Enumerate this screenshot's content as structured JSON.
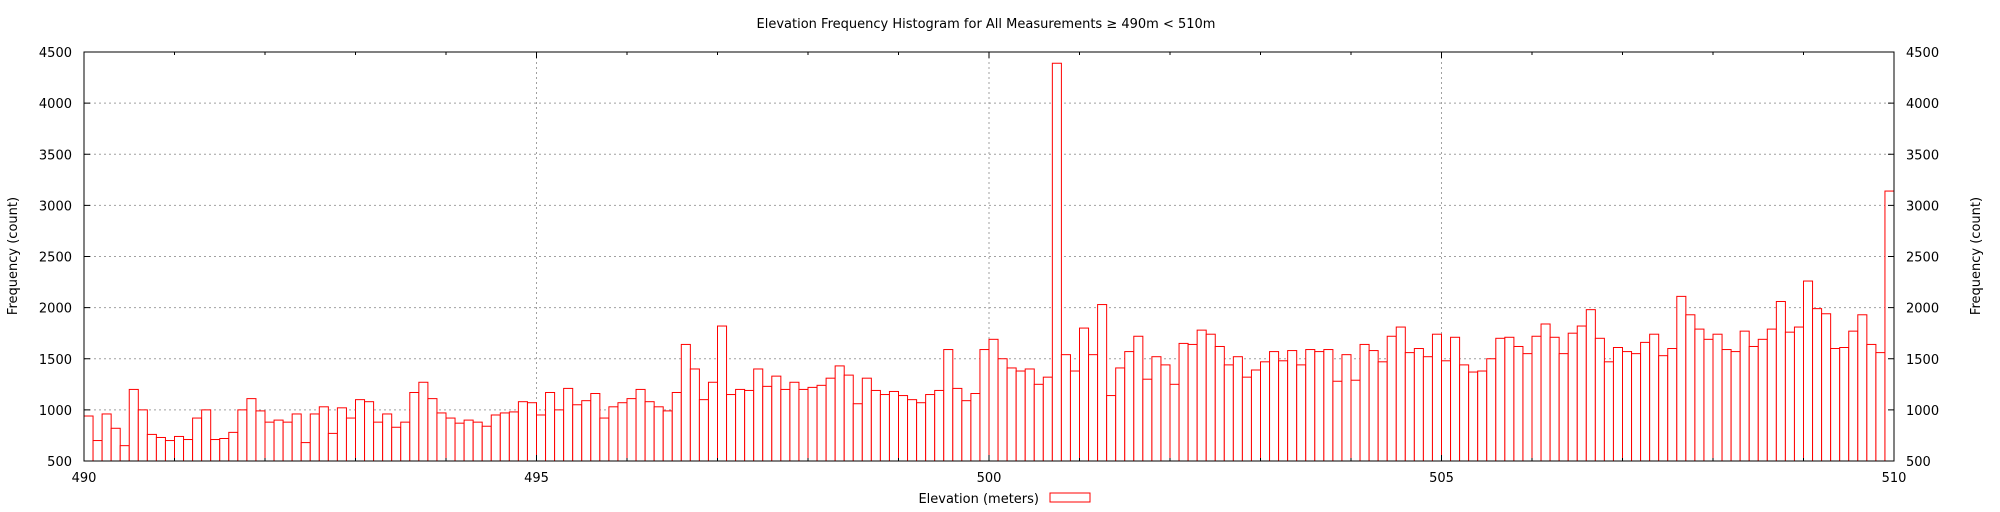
{
  "chart_data": {
    "type": "bar",
    "title": "Elevation Frequency Histogram for All Measurements ≥ 490m < 510m",
    "xlabel": "Elevation (meters)",
    "ylabel": "Frequency (count)",
    "y2label": "Frequency (count)",
    "xlim": [
      490,
      510
    ],
    "ylim": [
      500,
      4500
    ],
    "xticks": [
      "490",
      "495",
      "500",
      "505",
      "510"
    ],
    "yticks": [
      "500",
      "1000",
      "1500",
      "2000",
      "2500",
      "3000",
      "3500",
      "4000",
      "4500"
    ],
    "grid": true,
    "legend_placement": "bottom-center",
    "series_color": "#ff0000",
    "bin_width": 0.1,
    "bin_start": 490,
    "values": [
      940,
      700,
      960,
      820,
      650,
      1200,
      1000,
      760,
      730,
      700,
      740,
      710,
      920,
      1000,
      710,
      720,
      780,
      1000,
      1110,
      990,
      880,
      900,
      880,
      960,
      680,
      960,
      1030,
      770,
      1020,
      920,
      1100,
      1080,
      880,
      960,
      830,
      880,
      1170,
      1270,
      1110,
      970,
      920,
      870,
      900,
      880,
      840,
      950,
      970,
      980,
      1080,
      1070,
      950,
      1170,
      1000,
      1210,
      1050,
      1090,
      1160,
      920,
      1030,
      1070,
      1110,
      1200,
      1080,
      1030,
      990,
      1170,
      1640,
      1400,
      1100,
      1270,
      1820,
      1150,
      1200,
      1190,
      1400,
      1230,
      1330,
      1200,
      1270,
      1200,
      1220,
      1240,
      1310,
      1430,
      1340,
      1060,
      1310,
      1190,
      1150,
      1180,
      1140,
      1100,
      1070,
      1150,
      1190,
      1590,
      1210,
      1090,
      1160,
      1590,
      1690,
      1500,
      1410,
      1380,
      1400,
      1250,
      1320,
      4390,
      1540,
      1380,
      1800,
      1540,
      2030,
      1140,
      1410,
      1570,
      1720,
      1300,
      1520,
      1440,
      1250,
      1650,
      1640,
      1780,
      1740,
      1620,
      1440,
      1520,
      1320,
      1390,
      1470,
      1570,
      1480,
      1580,
      1440,
      1590,
      1570,
      1590,
      1280,
      1540,
      1290,
      1640,
      1580,
      1470,
      1720,
      1810,
      1560,
      1600,
      1520,
      1740,
      1480,
      1710,
      1440,
      1370,
      1380,
      1500,
      1700,
      1710,
      1620,
      1550,
      1720,
      1840,
      1710,
      1550,
      1750,
      1820,
      1980,
      1700,
      1470,
      1610,
      1570,
      1550,
      1660,
      1740,
      1530,
      1600,
      2110,
      1930,
      1790,
      1690,
      1740,
      1590,
      1570,
      1770,
      1620,
      1690,
      1790,
      2060,
      1760,
      1810,
      2260,
      1990,
      1940,
      1600,
      1610,
      1770,
      1930,
      1640,
      1560,
      3140
    ]
  }
}
